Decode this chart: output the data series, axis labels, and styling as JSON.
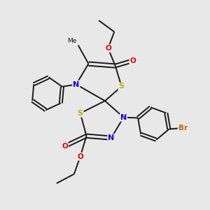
{
  "background_color": "#e8e8e8",
  "bond_color": "#1a1a1a",
  "N_color": "#0000ee",
  "S_color": "#ccaa00",
  "O_color": "#ee0000",
  "Br_color": "#cc6600",
  "figsize": [
    3.0,
    3.0
  ],
  "dpi": 100,
  "xlim": [
    0,
    10
  ],
  "ylim": [
    0,
    10
  ]
}
